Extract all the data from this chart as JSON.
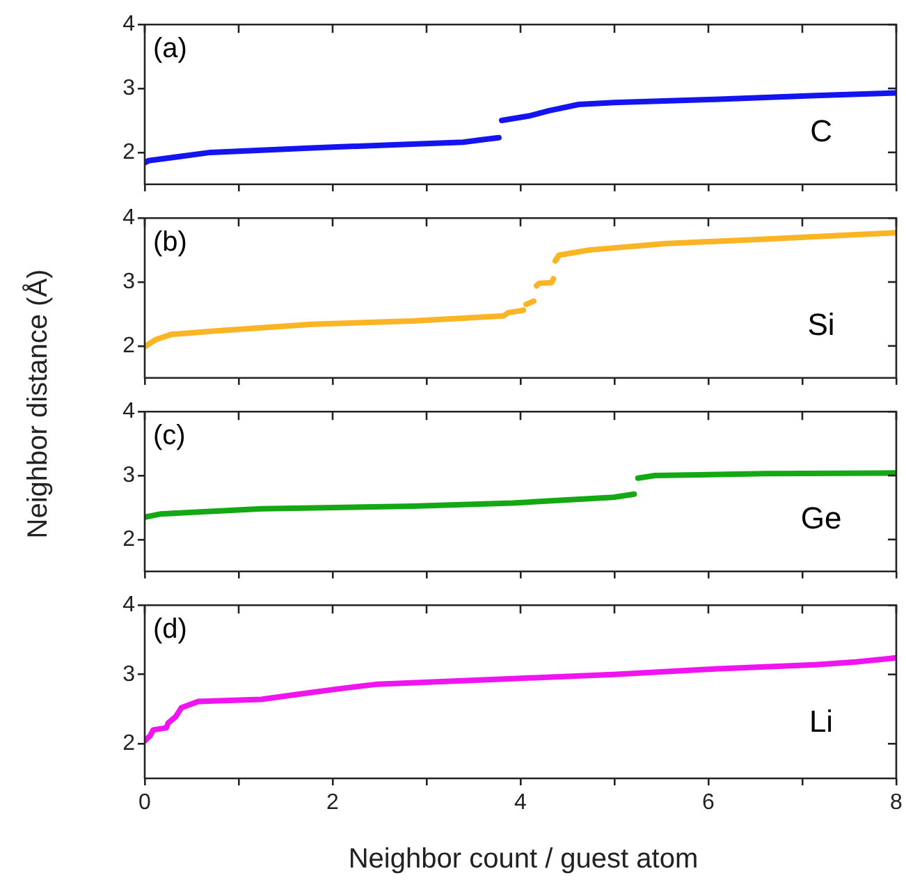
{
  "chart_data": [
    {
      "type": "line",
      "annotations": [
        "(a)"
      ],
      "series": [
        {
          "name": "C",
          "color": "#1414f0",
          "x": [
            0,
            0.04,
            0.7,
            1.78,
            2.85,
            3.39,
            3.6,
            3.77,
            null,
            3.8,
            4.09,
            4.3,
            4.62,
            5.0,
            6.07,
            7.14,
            8
          ],
          "values": [
            1.84,
            1.87,
            2.0,
            2.07,
            2.13,
            2.16,
            2.2,
            2.23,
            null,
            2.5,
            2.57,
            2.65,
            2.75,
            2.78,
            2.83,
            2.89,
            2.93
          ]
        }
      ],
      "xlim": [
        0,
        8
      ],
      "xticks": [
        0,
        {
          "value": 1,
          "label": null
        },
        2,
        {
          "value": 3,
          "label": null
        },
        4,
        {
          "value": 5,
          "label": null
        },
        6,
        {
          "value": 7,
          "label": null
        },
        8
      ],
      "ylim": [
        1.5,
        4
      ],
      "yticks": [
        2,
        3,
        4
      ],
      "tick_labels": "y"
    },
    {
      "type": "line",
      "annotations": [
        "(b)"
      ],
      "ylabel": "Neighbor distance (Å)",
      "series": [
        {
          "name": "Si",
          "color": "#fbb424",
          "x": [
            0,
            0.12,
            0.28,
            0.71,
            1.78,
            2.85,
            3.82,
            3.87,
            4.0,
            4.03,
            null,
            4.06,
            4.14,
            null,
            4.17,
            4.2,
            4.33,
            4.35,
            null,
            4.37,
            4.41,
            4.73,
            5.53,
            6.6,
            8
          ],
          "values": [
            1.99,
            2.1,
            2.18,
            2.23,
            2.34,
            2.39,
            2.47,
            2.52,
            2.55,
            2.56,
            null,
            2.65,
            2.7,
            null,
            2.94,
            2.98,
            2.99,
            3.05,
            null,
            3.33,
            3.42,
            3.5,
            3.6,
            3.67,
            3.77
          ]
        }
      ],
      "xlim": [
        0,
        8
      ],
      "xticks": [
        0,
        {
          "value": 1,
          "label": null
        },
        2,
        {
          "value": 3,
          "label": null
        },
        4,
        {
          "value": 5,
          "label": null
        },
        6,
        {
          "value": 7,
          "label": null
        },
        8
      ],
      "ylim": [
        1.5,
        4
      ],
      "yticks": [
        2,
        3,
        4
      ],
      "tick_labels": "y"
    },
    {
      "type": "line",
      "annotations": [
        "(c)"
      ],
      "series": [
        {
          "name": "Ge",
          "color": "#14a814",
          "x": [
            0,
            0.17,
            1.24,
            2.85,
            3.92,
            4.99,
            5.21,
            null,
            5.25,
            5.43,
            6.6,
            8
          ],
          "values": [
            2.35,
            2.4,
            2.48,
            2.52,
            2.57,
            2.66,
            2.71,
            null,
            2.96,
            3.0,
            3.03,
            3.04
          ]
        }
      ],
      "xlim": [
        0,
        8
      ],
      "xticks": [
        0,
        {
          "value": 1,
          "label": null
        },
        2,
        {
          "value": 3,
          "label": null
        },
        4,
        {
          "value": 5,
          "label": null
        },
        6,
        {
          "value": 7,
          "label": null
        },
        8
      ],
      "ylim": [
        1.5,
        4
      ],
      "yticks": [
        2,
        3,
        4
      ],
      "tick_labels": "y"
    },
    {
      "type": "line",
      "annotations": [
        "(d)"
      ],
      "xlabel": "Neighbor count / guest atom",
      "series": [
        {
          "name": "Li",
          "color": "#f014f0",
          "x": [
            0,
            0.06,
            0.09,
            0.23,
            0.25,
            0.33,
            0.39,
            0.57,
            1.24,
            1.67,
            2.05,
            2.48,
            3.92,
            4.99,
            6.07,
            7.14,
            7.57,
            8
          ],
          "values": [
            2.04,
            2.12,
            2.2,
            2.23,
            2.3,
            2.39,
            2.52,
            2.61,
            2.64,
            2.72,
            2.79,
            2.86,
            2.94,
            3.0,
            3.08,
            3.14,
            3.18,
            3.24
          ]
        }
      ],
      "xlim": [
        0,
        8
      ],
      "xticks": [
        0,
        {
          "value": 1,
          "label": null
        },
        2,
        {
          "value": 3,
          "label": null
        },
        4,
        {
          "value": 5,
          "label": null
        },
        6,
        {
          "value": 7,
          "label": null
        },
        8
      ],
      "ylim": [
        1.5,
        4
      ],
      "yticks": [
        2,
        3,
        4
      ]
    }
  ]
}
